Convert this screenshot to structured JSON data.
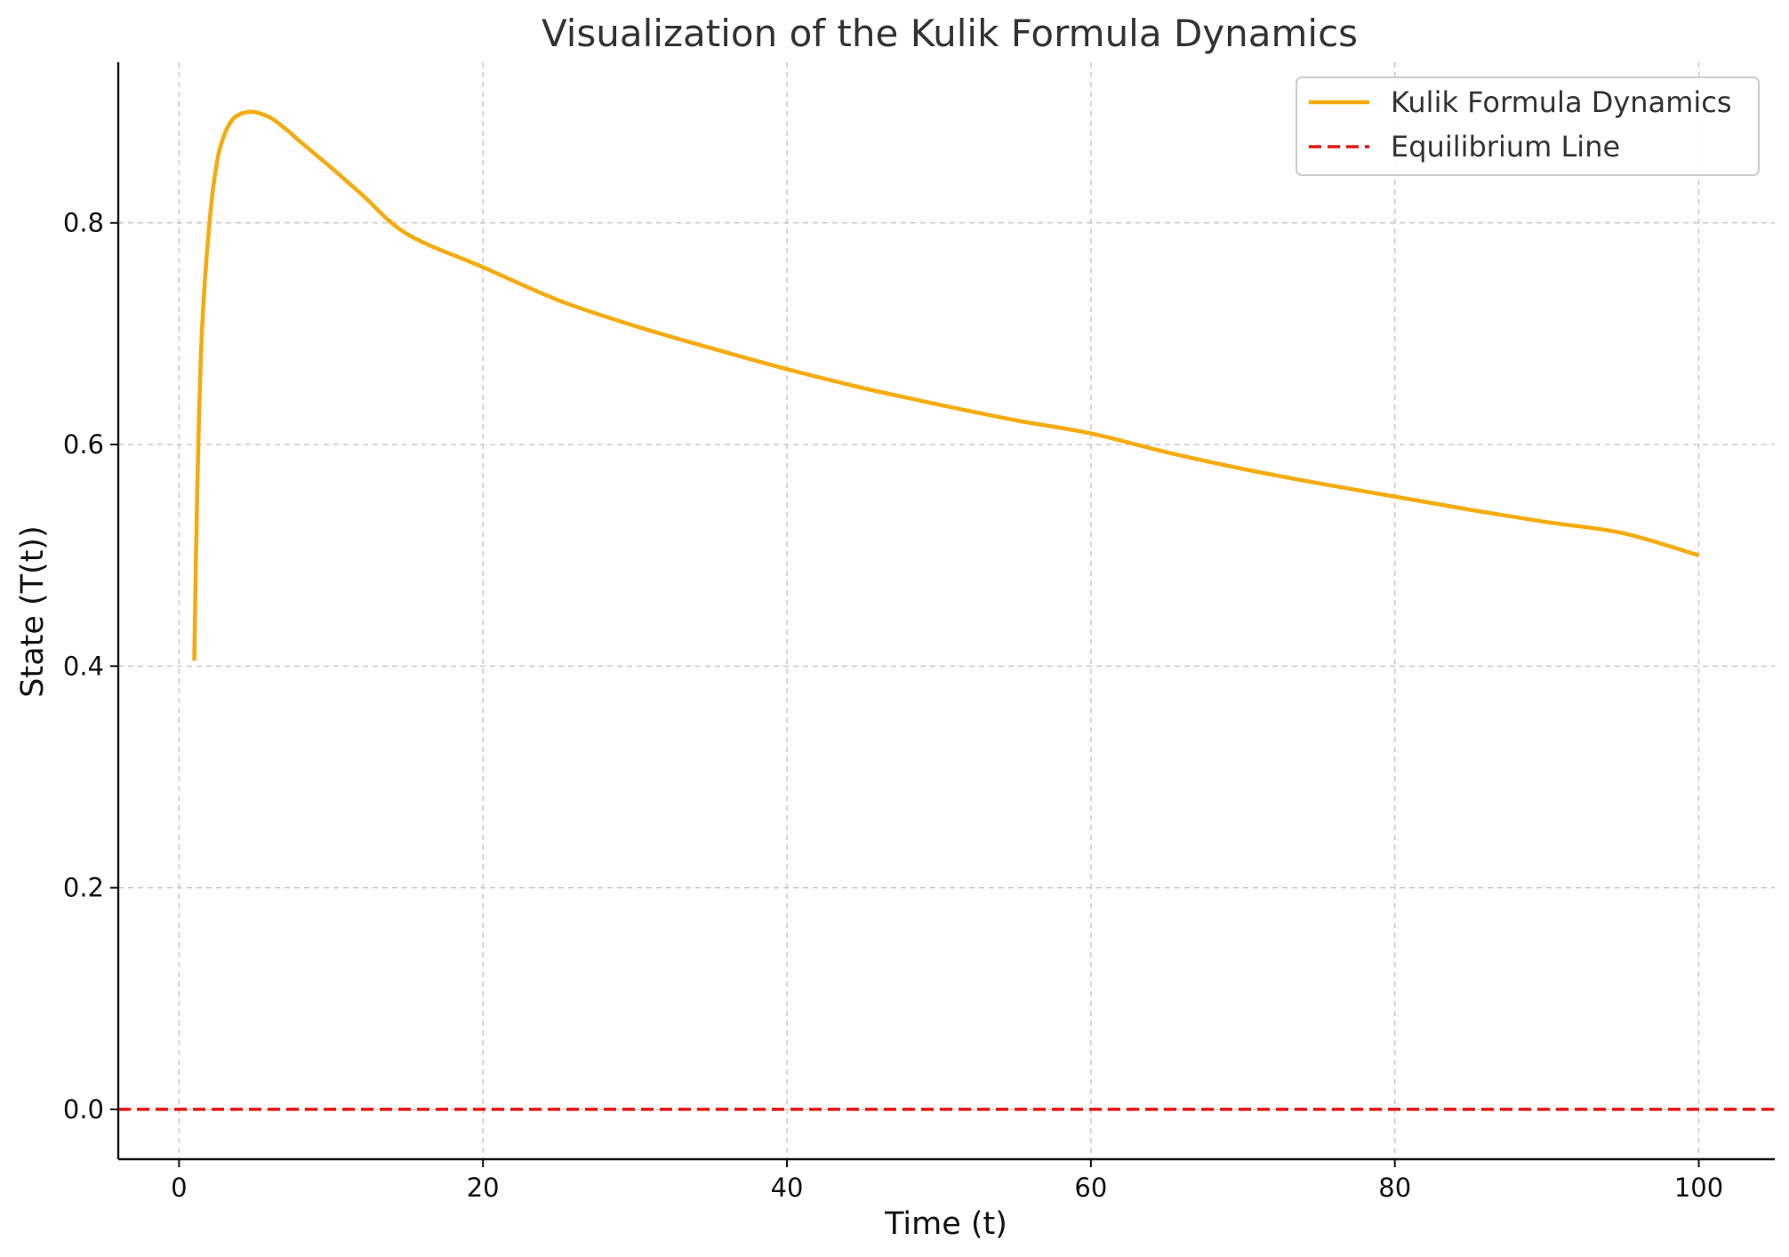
{
  "chart_data": {
    "type": "line",
    "title": "Visualization of the Kulik Formula Dynamics",
    "xlabel": "Time (t)",
    "ylabel": "State (T(t))",
    "xlim": [
      -4,
      105
    ],
    "ylim": [
      -0.045,
      0.945
    ],
    "xticks": [
      0,
      20,
      40,
      60,
      80,
      100
    ],
    "yticks": [
      0.0,
      0.2,
      0.4,
      0.6,
      0.8
    ],
    "xtick_labels": [
      "0",
      "20",
      "40",
      "60",
      "80",
      "100"
    ],
    "ytick_labels": [
      "0.0",
      "0.2",
      "0.4",
      "0.6",
      "0.8"
    ],
    "grid": true,
    "legend_position": "top-right",
    "series": [
      {
        "name": "Kulik Formula Dynamics",
        "color": "#f5ab0c",
        "style": "solid",
        "x": [
          1,
          1.2,
          1.5,
          2,
          2.5,
          3,
          3.5,
          4,
          4.5,
          5,
          6,
          7,
          8,
          10,
          12,
          15,
          20,
          25,
          30,
          35,
          40,
          45,
          50,
          55,
          60,
          65,
          70,
          75,
          80,
          85,
          90,
          95,
          100
        ],
        "y": [
          0.405,
          0.56,
          0.7,
          0.8,
          0.855,
          0.88,
          0.893,
          0.898,
          0.9,
          0.9,
          0.895,
          0.885,
          0.873,
          0.85,
          0.826,
          0.79,
          0.76,
          0.73,
          0.707,
          0.687,
          0.668,
          0.651,
          0.636,
          0.622,
          0.61,
          0.593,
          0.578,
          0.565,
          0.553,
          0.541,
          0.53,
          0.52,
          0.5
        ]
      },
      {
        "name": "Equilibrium Line",
        "color": "#ee1111",
        "style": "dashed",
        "y_constant": 0.0
      }
    ]
  }
}
